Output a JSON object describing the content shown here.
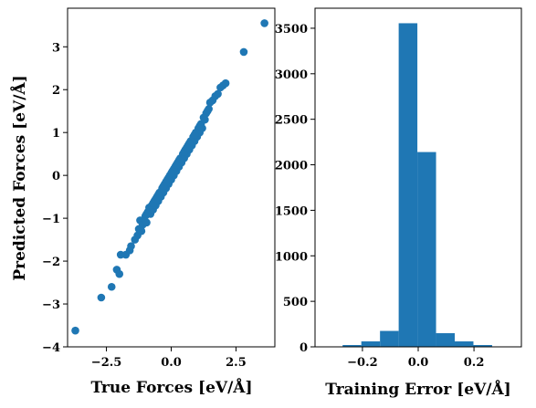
{
  "chart_data": [
    {
      "type": "scatter",
      "xlabel": "True Forces [eV/Å]",
      "ylabel": "Predicted Forces [eV/Å]",
      "xlim": [
        -4.0,
        4.0
      ],
      "ylim": [
        -4.0,
        3.9
      ],
      "xticks": [
        -2.5,
        0.0,
        2.5
      ],
      "xtick_labels": [
        "−2.5",
        "0.0",
        "2.5"
      ],
      "yticks": [
        -4,
        -3,
        -2,
        -1,
        0,
        1,
        2,
        3
      ],
      "ytick_labels": [
        "−4",
        "−3",
        "−2",
        "−1",
        "0",
        "1",
        "2",
        "3"
      ],
      "color": "#1f77b4",
      "grid": false,
      "points": [
        [
          -3.7,
          -3.62
        ],
        [
          -2.7,
          -2.85
        ],
        [
          -2.3,
          -2.6
        ],
        [
          -2.1,
          -2.2
        ],
        [
          -2.0,
          -2.3
        ],
        [
          -1.95,
          -1.85
        ],
        [
          -1.75,
          -1.85
        ],
        [
          -1.6,
          -1.75
        ],
        [
          -1.55,
          -1.65
        ],
        [
          -1.3,
          -1.4
        ],
        [
          -1.25,
          -1.25
        ],
        [
          -1.2,
          -1.05
        ],
        [
          -1.1,
          -1.15
        ],
        [
          -1.0,
          -0.95
        ],
        [
          -0.95,
          -1.1
        ],
        [
          -0.9,
          -0.85
        ],
        [
          -0.85,
          -0.75
        ],
        [
          -0.8,
          -0.9
        ],
        [
          -0.75,
          -0.7
        ],
        [
          -0.7,
          -0.8
        ],
        [
          -0.65,
          -0.6
        ],
        [
          -0.6,
          -0.7
        ],
        [
          -0.55,
          -0.5
        ],
        [
          -0.5,
          -0.6
        ],
        [
          -0.45,
          -0.4
        ],
        [
          -0.4,
          -0.5
        ],
        [
          -0.35,
          -0.3
        ],
        [
          -0.3,
          -0.4
        ],
        [
          -0.25,
          -0.2
        ],
        [
          -0.2,
          -0.3
        ],
        [
          -0.15,
          -0.1
        ],
        [
          -0.1,
          -0.2
        ],
        [
          -0.05,
          0.0
        ],
        [
          0.0,
          -0.1
        ],
        [
          0.05,
          0.1
        ],
        [
          0.1,
          0.0
        ],
        [
          0.15,
          0.2
        ],
        [
          0.2,
          0.1
        ],
        [
          0.25,
          0.3
        ],
        [
          0.3,
          0.2
        ],
        [
          0.35,
          0.4
        ],
        [
          0.4,
          0.3
        ],
        [
          0.45,
          0.5
        ],
        [
          0.5,
          0.4
        ],
        [
          0.55,
          0.6
        ],
        [
          0.6,
          0.5
        ],
        [
          0.65,
          0.7
        ],
        [
          0.7,
          0.6
        ],
        [
          0.75,
          0.8
        ],
        [
          0.8,
          0.7
        ],
        [
          0.85,
          0.9
        ],
        [
          0.9,
          0.8
        ],
        [
          0.95,
          1.0
        ],
        [
          1.0,
          0.9
        ],
        [
          1.05,
          1.1
        ],
        [
          1.1,
          1.0
        ],
        [
          1.15,
          1.2
        ],
        [
          1.2,
          1.1
        ],
        [
          1.3,
          1.3
        ],
        [
          1.35,
          1.45
        ],
        [
          1.45,
          1.55
        ],
        [
          1.5,
          1.7
        ],
        [
          1.6,
          1.75
        ],
        [
          1.7,
          1.85
        ],
        [
          1.8,
          1.9
        ],
        [
          1.9,
          2.05
        ],
        [
          2.0,
          2.1
        ],
        [
          2.1,
          2.15
        ],
        [
          2.8,
          2.88
        ],
        [
          3.6,
          3.55
        ],
        [
          -1.4,
          -1.5
        ],
        [
          -1.15,
          -1.3
        ],
        [
          -0.95,
          -0.9
        ],
        [
          -0.7,
          -0.65
        ],
        [
          -0.5,
          -0.45
        ],
        [
          -0.3,
          -0.25
        ],
        [
          -0.1,
          -0.05
        ],
        [
          0.1,
          0.15
        ],
        [
          0.3,
          0.35
        ],
        [
          0.5,
          0.55
        ],
        [
          0.7,
          0.75
        ],
        [
          0.9,
          0.95
        ],
        [
          1.1,
          1.15
        ],
        [
          1.25,
          1.35
        ],
        [
          1.4,
          1.5
        ],
        [
          0.2,
          0.25
        ],
        [
          -0.2,
          -0.15
        ],
        [
          0.6,
          0.65
        ],
        [
          -0.6,
          -0.55
        ],
        [
          0.0,
          0.05
        ]
      ]
    },
    {
      "type": "bar",
      "xlabel": "Training Error [eV/Å]",
      "ylabel": "",
      "xlim": [
        -0.37,
        0.37
      ],
      "ylim": [
        0,
        3720
      ],
      "xticks": [
        -0.2,
        0.0,
        0.2
      ],
      "xtick_labels": [
        "−0.2",
        "0.0",
        "0.2"
      ],
      "yticks": [
        0,
        500,
        1000,
        1500,
        2000,
        2500,
        3000,
        3500
      ],
      "ytick_labels": [
        "0",
        "500",
        "1000",
        "1500",
        "2000",
        "2500",
        "3000",
        "3500"
      ],
      "color": "#1f77b4",
      "grid": false,
      "bins": [
        [
          -0.338,
          -0.271,
          5
        ],
        [
          -0.271,
          -0.204,
          20
        ],
        [
          -0.204,
          -0.137,
          60
        ],
        [
          -0.137,
          -0.07,
          175
        ],
        [
          -0.07,
          -0.003,
          3555
        ],
        [
          -0.003,
          0.064,
          2140
        ],
        [
          0.064,
          0.131,
          150
        ],
        [
          0.131,
          0.198,
          60
        ],
        [
          0.198,
          0.265,
          20
        ],
        [
          0.265,
          0.332,
          5
        ]
      ]
    }
  ]
}
